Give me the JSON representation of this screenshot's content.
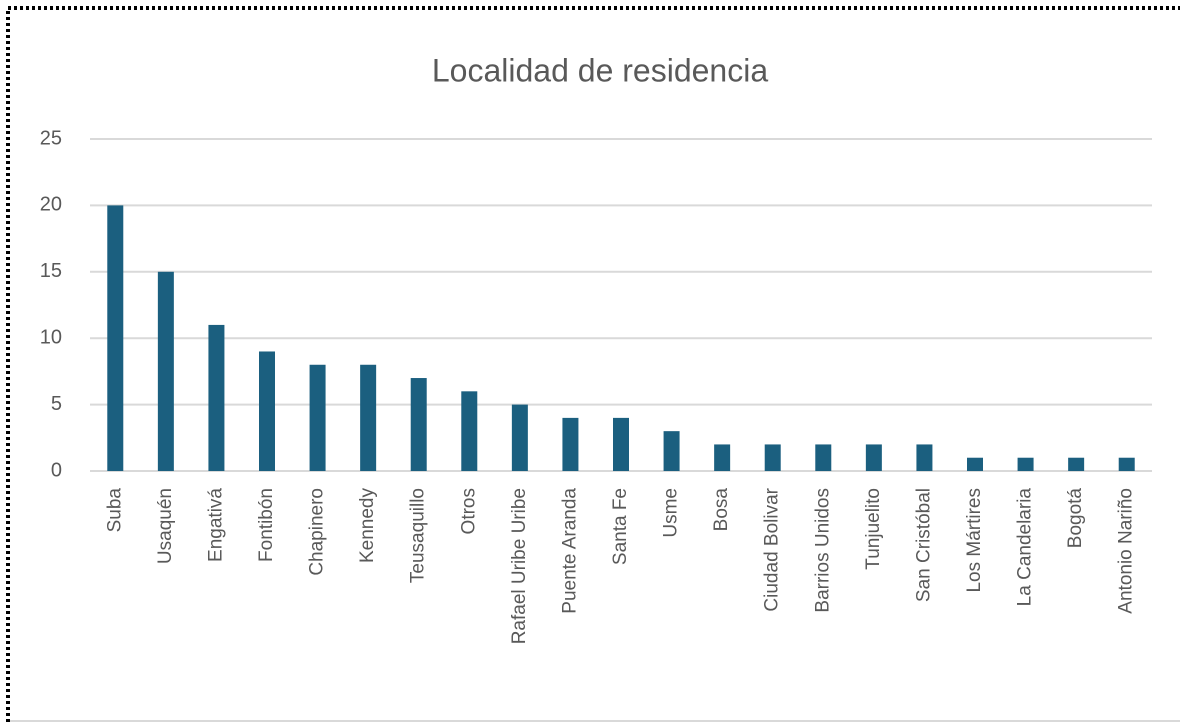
{
  "chart_data": {
    "type": "bar",
    "title": "Localidad de residencia",
    "categories": [
      "Suba",
      "Usaquén",
      "Engativá",
      "Fontibón",
      "Chapinero",
      "Kennedy",
      "Teusaquillo",
      "Otros",
      "Rafael Uribe Uribe",
      "Puente Aranda",
      "Santa Fe",
      "Usme",
      "Bosa",
      "Ciudad Bolivar",
      "Barrios Unidos",
      "Tunjuelito",
      "San Cristóbal",
      "Los Mártires",
      "La Candelaria",
      "Bogotá",
      "Antonio Nariño"
    ],
    "values": [
      20,
      15,
      11,
      9,
      8,
      8,
      7,
      6,
      5,
      4,
      4,
      3,
      2,
      2,
      2,
      2,
      2,
      1,
      1,
      1,
      1
    ],
    "color": "#1b5f7f",
    "ylim": [
      0,
      25
    ],
    "yticks": [
      0,
      5,
      10,
      15,
      20,
      25
    ],
    "grid": true
  }
}
